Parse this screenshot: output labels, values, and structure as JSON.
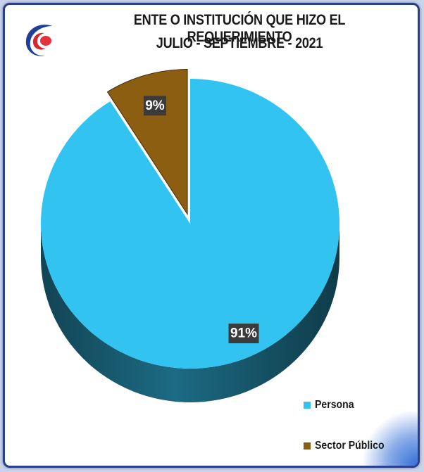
{
  "chart_data": {
    "type": "pie",
    "title": "ENTE O INSTITUCIÓN QUE HIZO EL REQUERIMIENTO",
    "subtitle": "JULIO - SEPTIEMBRE - 2021",
    "style": "3d-exploded",
    "slices": [
      {
        "name": "Persona",
        "value": 91,
        "label": "91%",
        "color": "#33c3f0"
      },
      {
        "name": "Sector Público",
        "value": 9,
        "label": "9%",
        "color": "#8b5e12"
      }
    ],
    "legend_position": "bottom-right"
  },
  "colors": {
    "frame_border": "#2b3f8f",
    "label_box": "#3b3b3b"
  },
  "icons": {
    "logo": "institution-logo-icon"
  }
}
